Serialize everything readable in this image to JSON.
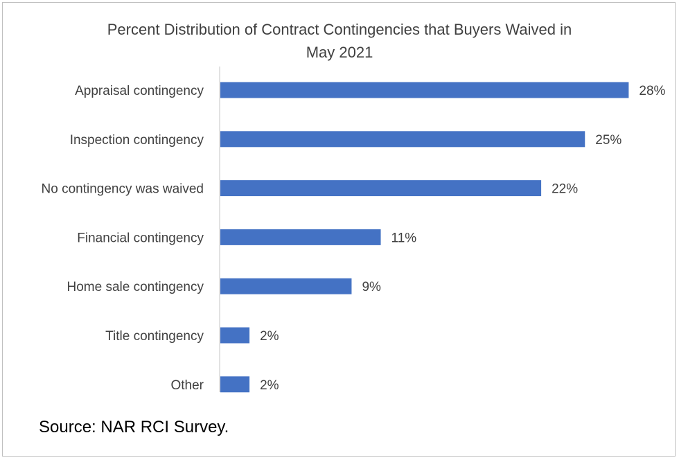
{
  "chart_data": {
    "type": "bar",
    "orientation": "horizontal",
    "title_line1": "Percent Distribution of Contract Contingencies that Buyers Waived in",
    "title_line2": "May 2021",
    "categories": [
      "Appraisal contingency",
      "Inspection contingency",
      "No contingency was waived",
      "Financial contingency",
      "Home sale contingency",
      "Title contingency",
      "Other"
    ],
    "values": [
      28,
      25,
      22,
      11,
      9,
      2,
      2
    ],
    "value_labels": [
      "28%",
      "25%",
      "22%",
      "11%",
      "9%",
      "2%",
      "2%"
    ],
    "bar_color": "#4472C4",
    "grid": false,
    "legend": "none"
  },
  "source_note": "Source: NAR RCI Survey."
}
